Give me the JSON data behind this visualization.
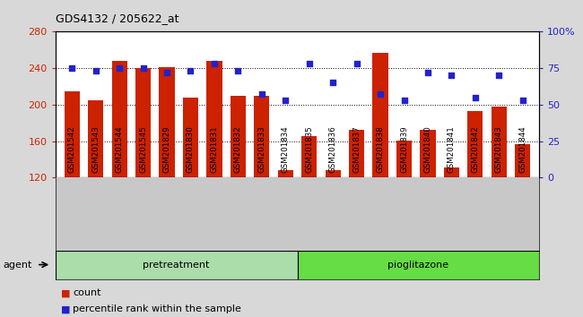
{
  "title": "GDS4132 / 205622_at",
  "samples": [
    "GSM201542",
    "GSM201543",
    "GSM201544",
    "GSM201545",
    "GSM201829",
    "GSM201830",
    "GSM201831",
    "GSM201832",
    "GSM201833",
    "GSM201834",
    "GSM201835",
    "GSM201836",
    "GSM201837",
    "GSM201838",
    "GSM201839",
    "GSM201840",
    "GSM201841",
    "GSM201842",
    "GSM201843",
    "GSM201844"
  ],
  "counts": [
    215,
    205,
    248,
    240,
    241,
    208,
    248,
    210,
    210,
    128,
    165,
    128,
    172,
    257,
    161,
    172,
    131,
    193,
    198,
    157
  ],
  "percentile": [
    75,
    73,
    75,
    75,
    72,
    73,
    78,
    73,
    57,
    53,
    78,
    65,
    78,
    57,
    53,
    72,
    70,
    55,
    70,
    53
  ],
  "bar_color": "#cc2200",
  "dot_color": "#2222cc",
  "ylim_left": [
    120,
    280
  ],
  "ylim_right": [
    0,
    100
  ],
  "yticks_left": [
    120,
    160,
    200,
    240,
    280
  ],
  "yticks_right": [
    0,
    25,
    50,
    75,
    100
  ],
  "ytick_labels_right": [
    "0",
    "25",
    "50",
    "75",
    "100%"
  ],
  "grid_lines": [
    160,
    200,
    240
  ],
  "group1_label": "pretreatment",
  "group2_label": "pioglitazone",
  "group1_count": 10,
  "group2_count": 10,
  "legend_count_label": "count",
  "legend_pct_label": "percentile rank within the sample",
  "agent_label": "agent",
  "fig_bg_color": "#d8d8d8",
  "plot_bg_color": "#ffffff",
  "xtick_bg_color": "#c8c8c8",
  "group1_bg": "#aaddaa",
  "group2_bg": "#66dd44"
}
